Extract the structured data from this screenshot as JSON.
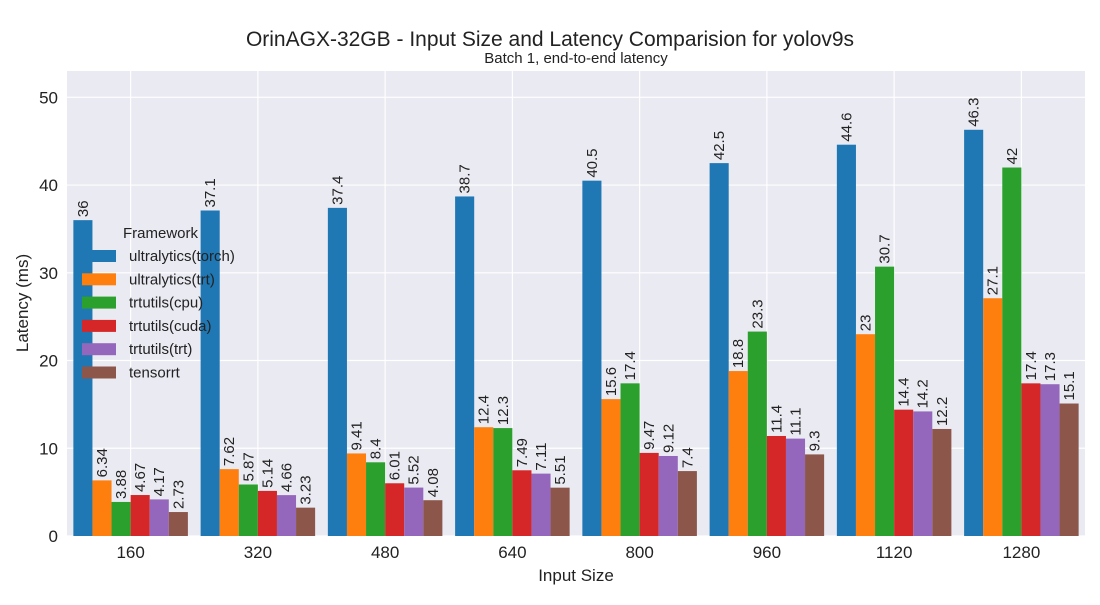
{
  "chart_data": {
    "type": "bar",
    "title": "OrinAGX-32GB - Input Size and Latency Comparision for yolov9s",
    "subtitle": "Batch 1, end-to-end latency",
    "xlabel": "Input Size",
    "ylabel": "Latency (ms)",
    "ylim": [
      0,
      53
    ],
    "yticks": [
      0,
      10,
      20,
      30,
      40,
      50
    ],
    "grid": true,
    "legend_title": "Framework",
    "legend_position": "upper-left",
    "categories": [
      "160",
      "320",
      "480",
      "640",
      "800",
      "960",
      "1120",
      "1280"
    ],
    "series": [
      {
        "name": "ultralytics(torch)",
        "color": "#1f77b4",
        "values": [
          36,
          37.1,
          37.4,
          38.7,
          40.5,
          42.5,
          44.6,
          46.3
        ],
        "labels": [
          "36",
          "37.1",
          "37.4",
          "38.7",
          "40.5",
          "42.5",
          "44.6",
          "46.3"
        ]
      },
      {
        "name": "ultralytics(trt)",
        "color": "#ff7f0e",
        "values": [
          6.34,
          7.62,
          9.41,
          12.4,
          15.6,
          18.8,
          23,
          27.1
        ],
        "labels": [
          "6.34",
          "7.62",
          "9.41",
          "12.4",
          "15.6",
          "18.8",
          "23",
          "27.1"
        ]
      },
      {
        "name": "trtutils(cpu)",
        "color": "#2ca02c",
        "values": [
          3.88,
          5.87,
          8.4,
          12.3,
          17.4,
          23.3,
          30.7,
          42
        ],
        "labels": [
          "3.88",
          "5.87",
          "8.4",
          "12.3",
          "17.4",
          "23.3",
          "30.7",
          "42"
        ]
      },
      {
        "name": "trtutils(cuda)",
        "color": "#d62728",
        "values": [
          4.67,
          5.14,
          6.01,
          7.49,
          9.47,
          11.4,
          14.4,
          17.4
        ],
        "labels": [
          "4.67",
          "5.14",
          "6.01",
          "7.49",
          "9.47",
          "11.4",
          "14.4",
          "17.4"
        ]
      },
      {
        "name": "trtutils(trt)",
        "color": "#9467bd",
        "values": [
          4.17,
          4.66,
          5.52,
          7.11,
          9.12,
          11.1,
          14.2,
          17.3
        ],
        "labels": [
          "4.17",
          "4.66",
          "5.52",
          "7.11",
          "9.12",
          "11.1",
          "14.2",
          "17.3"
        ]
      },
      {
        "name": "tensorrt",
        "color": "#8c564b",
        "values": [
          2.73,
          3.23,
          4.08,
          5.51,
          7.4,
          9.3,
          12.2,
          15.1
        ],
        "labels": [
          "2.73",
          "3.23",
          "4.08",
          "5.51",
          "7.4",
          "9.3",
          "12.2",
          "15.1"
        ]
      }
    ],
    "style": {
      "plot_background": "#eaeaf2",
      "grid_color": "#ffffff"
    }
  }
}
